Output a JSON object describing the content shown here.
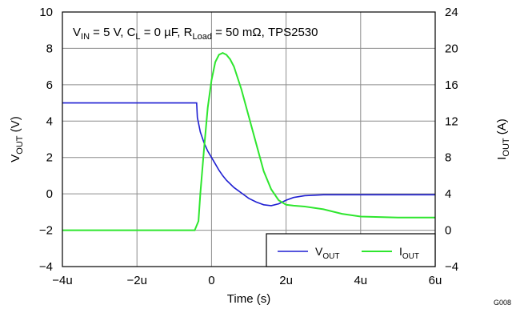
{
  "chart_data": {
    "type": "line",
    "annotation": {
      "parts": [
        {
          "t": "V",
          "sub": "IN"
        },
        {
          "t": " = 5 V, C",
          "sub": "L"
        },
        {
          "t": " = 0 µF, R",
          "sub": "Load"
        },
        {
          "t": " = 50 mΩ, TPS2530",
          "sub": ""
        }
      ]
    },
    "xlabel": "Time (s)",
    "ylabel_left": {
      "main": "V",
      "sub": "OUT",
      "unit": " (V)"
    },
    "ylabel_right": {
      "main": "I",
      "sub": "OUT",
      "unit": " (A)"
    },
    "xlim": [
      -4,
      6
    ],
    "ylim_left": [
      -4,
      10
    ],
    "ylim_right": [
      -4,
      24
    ],
    "x_ticks": [
      "−4u",
      "−2u",
      "0",
      "2u",
      "4u",
      "6u"
    ],
    "y_left_ticks": [
      "−4",
      "−2",
      "0",
      "2",
      "4",
      "6",
      "8",
      "10"
    ],
    "y_right_ticks": [
      "−4",
      "0",
      "4",
      "8",
      "12",
      "16",
      "20",
      "24"
    ],
    "grid": true,
    "legend_position": "bottom-right",
    "figure_id": "G008",
    "series": [
      {
        "name": {
          "main": "V",
          "sub": "OUT"
        },
        "axis": "left",
        "color": "#1f1fd2",
        "x": [
          -4.0,
          -3.0,
          -2.0,
          -1.0,
          -0.4,
          -0.38,
          -0.3,
          -0.2,
          -0.1,
          0.0,
          0.1,
          0.2,
          0.3,
          0.4,
          0.6,
          0.8,
          1.0,
          1.2,
          1.4,
          1.6,
          1.8,
          2.0,
          2.2,
          2.5,
          3.0,
          3.5,
          4.0,
          5.0,
          6.0
        ],
        "y": [
          5.0,
          5.0,
          5.0,
          5.0,
          5.0,
          4.2,
          3.4,
          2.8,
          2.35,
          2.0,
          1.65,
          1.3,
          1.0,
          0.75,
          0.35,
          0.05,
          -0.25,
          -0.45,
          -0.6,
          -0.65,
          -0.55,
          -0.35,
          -0.2,
          -0.1,
          -0.05,
          -0.05,
          -0.05,
          -0.05,
          -0.05
        ]
      },
      {
        "name": {
          "main": "I",
          "sub": "OUT"
        },
        "axis": "right",
        "color": "#2ee62e",
        "x": [
          -4.0,
          -3.0,
          -2.0,
          -1.0,
          -0.45,
          -0.35,
          -0.3,
          -0.2,
          -0.1,
          0.0,
          0.1,
          0.2,
          0.3,
          0.4,
          0.5,
          0.6,
          0.8,
          1.0,
          1.2,
          1.4,
          1.6,
          1.8,
          2.0,
          2.2,
          2.5,
          3.0,
          3.5,
          4.0,
          5.0,
          6.0
        ],
        "y": [
          0.0,
          0.0,
          0.0,
          0.0,
          0.0,
          1.0,
          4.0,
          9.0,
          13.5,
          16.5,
          18.5,
          19.3,
          19.5,
          19.3,
          18.8,
          18.0,
          15.5,
          12.5,
          9.5,
          6.5,
          4.5,
          3.3,
          2.8,
          2.7,
          2.6,
          2.3,
          1.8,
          1.5,
          1.4,
          1.4
        ]
      }
    ]
  }
}
